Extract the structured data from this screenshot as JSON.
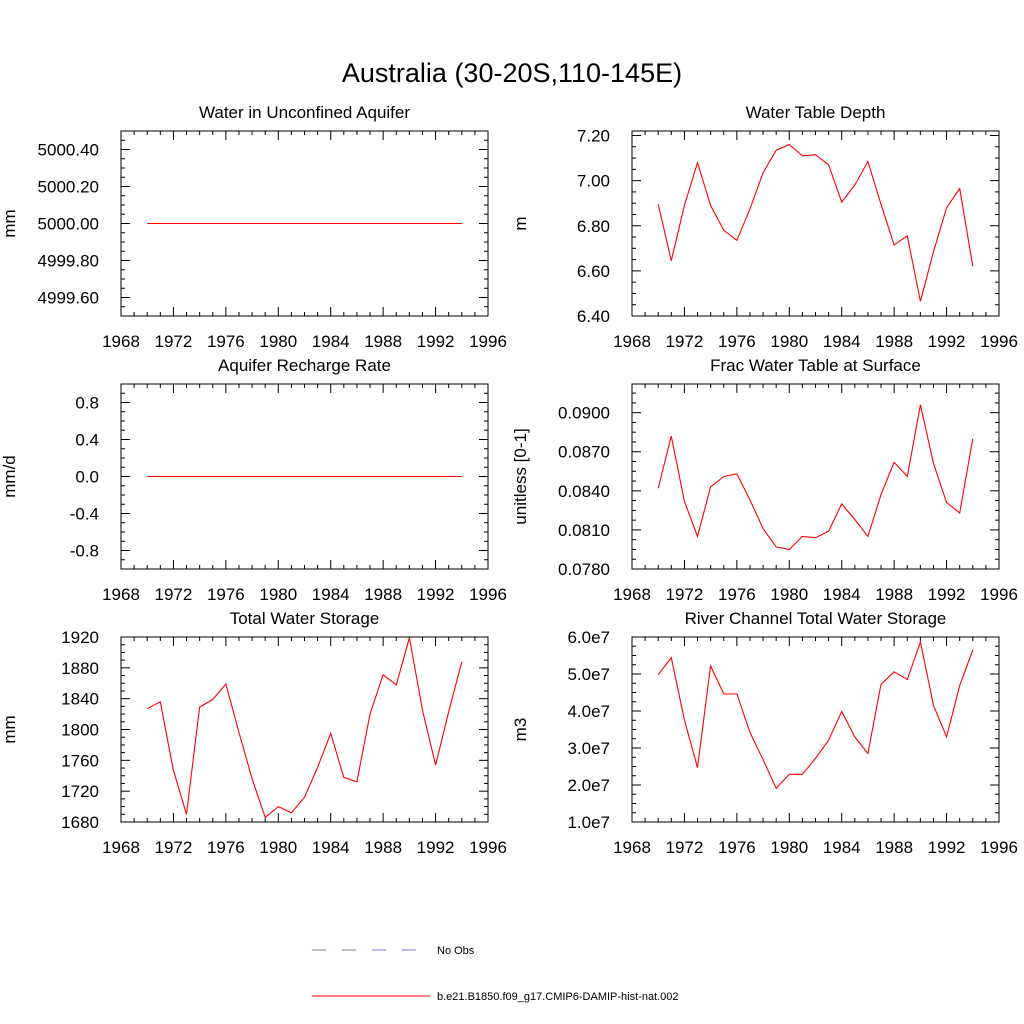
{
  "title": "Australia (30-20S,110-145E)",
  "colors": {
    "model_line": "#ff0000",
    "obs_line": "#7b7bd0",
    "axis": "#000000"
  },
  "legend": [
    {
      "label": "No Obs",
      "style": "dashed",
      "color": "#7b7bd0"
    },
    {
      "label": "b.e21.B1850.f09_g17.CMIP6-DAMIP-hist-nat.002",
      "style": "solid",
      "color": "#ff0000"
    }
  ],
  "chart_data": [
    {
      "type": "line",
      "title": "Water in Unconfined Aquifer",
      "ylabel": "mm",
      "xlim": [
        1968,
        1996
      ],
      "ylim": [
        4999.5,
        5000.5
      ],
      "xticks": [
        1968,
        1972,
        1976,
        1980,
        1984,
        1988,
        1992,
        1996
      ],
      "yticks": [
        4999.6,
        4999.8,
        5000.0,
        5000.2,
        5000.4
      ],
      "ytick_labels": [
        "4999.60",
        "4999.80",
        "5000.00",
        "5000.20",
        "5000.40"
      ],
      "x": [
        1970,
        1971,
        1972,
        1973,
        1974,
        1975,
        1976,
        1977,
        1978,
        1979,
        1980,
        1981,
        1982,
        1983,
        1984,
        1985,
        1986,
        1987,
        1988,
        1989,
        1990,
        1991,
        1992,
        1993,
        1994
      ],
      "series": [
        {
          "values": [
            5000,
            5000,
            5000,
            5000,
            5000,
            5000,
            5000,
            5000,
            5000,
            5000,
            5000,
            5000,
            5000,
            5000,
            5000,
            5000,
            5000,
            5000,
            5000,
            5000,
            5000,
            5000,
            5000,
            5000,
            5000
          ]
        }
      ]
    },
    {
      "type": "line",
      "title": "Water Table Depth",
      "ylabel": "m",
      "xlim": [
        1968,
        1996
      ],
      "ylim": [
        6.4,
        7.22
      ],
      "xticks": [
        1968,
        1972,
        1976,
        1980,
        1984,
        1988,
        1992,
        1996
      ],
      "yticks": [
        6.4,
        6.6,
        6.8,
        7.0,
        7.2
      ],
      "ytick_labels": [
        "6.40",
        "6.60",
        "6.80",
        "7.00",
        "7.20"
      ],
      "x": [
        1970,
        1971,
        1972,
        1973,
        1974,
        1975,
        1976,
        1977,
        1978,
        1979,
        1980,
        1981,
        1982,
        1983,
        1984,
        1985,
        1986,
        1987,
        1988,
        1989,
        1990,
        1991,
        1992,
        1993,
        1994
      ],
      "series": [
        {
          "values": [
            6.895,
            6.645,
            6.89,
            7.08,
            6.89,
            6.78,
            6.735,
            6.875,
            7.035,
            7.135,
            7.16,
            7.11,
            7.115,
            7.07,
            6.905,
            6.98,
            7.085,
            6.895,
            6.715,
            6.755,
            6.465,
            6.685,
            6.88,
            6.965,
            6.62
          ]
        }
      ]
    },
    {
      "type": "line",
      "title": "Aquifer Recharge Rate",
      "ylabel": "mm/d",
      "xlim": [
        1968,
        1996
      ],
      "ylim": [
        -1.0,
        1.0
      ],
      "xticks": [
        1968,
        1972,
        1976,
        1980,
        1984,
        1988,
        1992,
        1996
      ],
      "yticks": [
        -0.8,
        -0.4,
        0.0,
        0.4,
        0.8
      ],
      "ytick_labels": [
        "-0.8",
        "-0.4",
        "0.0",
        "0.4",
        "0.8"
      ],
      "x": [
        1970,
        1971,
        1972,
        1973,
        1974,
        1975,
        1976,
        1977,
        1978,
        1979,
        1980,
        1981,
        1982,
        1983,
        1984,
        1985,
        1986,
        1987,
        1988,
        1989,
        1990,
        1991,
        1992,
        1993,
        1994
      ],
      "series": [
        {
          "values": [
            0,
            0,
            0,
            0,
            0,
            0,
            0,
            0,
            0,
            0,
            0,
            0,
            0,
            0,
            0,
            0,
            0,
            0,
            0,
            0,
            0,
            0,
            0,
            0,
            0
          ]
        }
      ]
    },
    {
      "type": "line",
      "title": "Frac Water Table at Surface",
      "ylabel": "unitless [0-1]",
      "xlim": [
        1968,
        1996
      ],
      "ylim": [
        0.078,
        0.0922
      ],
      "xticks": [
        1968,
        1972,
        1976,
        1980,
        1984,
        1988,
        1992,
        1996
      ],
      "yticks": [
        0.078,
        0.081,
        0.084,
        0.087,
        0.09
      ],
      "ytick_labels": [
        "0.0780",
        "0.0810",
        "0.0840",
        "0.0870",
        "0.0900"
      ],
      "x": [
        1970,
        1971,
        1972,
        1973,
        1974,
        1975,
        1976,
        1977,
        1978,
        1979,
        1980,
        1981,
        1982,
        1983,
        1984,
        1985,
        1986,
        1987,
        1988,
        1989,
        1990,
        1991,
        1992,
        1993,
        1994
      ],
      "series": [
        {
          "values": [
            0.0842,
            0.0882,
            0.0832,
            0.0805,
            0.0843,
            0.0851,
            0.0853,
            0.0833,
            0.0811,
            0.0797,
            0.0795,
            0.0805,
            0.0804,
            0.0809,
            0.083,
            0.0818,
            0.0805,
            0.0837,
            0.0862,
            0.0851,
            0.0906,
            0.0861,
            0.0831,
            0.0823,
            0.088
          ]
        }
      ]
    },
    {
      "type": "line",
      "title": "Total Water Storage",
      "ylabel": "mm",
      "xlim": [
        1968,
        1996
      ],
      "ylim": [
        1680,
        1920
      ],
      "xticks": [
        1968,
        1972,
        1976,
        1980,
        1984,
        1988,
        1992,
        1996
      ],
      "yticks": [
        1680,
        1720,
        1760,
        1800,
        1840,
        1880,
        1920
      ],
      "ytick_labels": [
        "1680",
        "1720",
        "1760",
        "1800",
        "1840",
        "1880",
        "1920"
      ],
      "x": [
        1970,
        1971,
        1972,
        1973,
        1974,
        1975,
        1976,
        1977,
        1978,
        1979,
        1980,
        1981,
        1982,
        1983,
        1984,
        1985,
        1986,
        1987,
        1988,
        1989,
        1990,
        1991,
        1992,
        1993,
        1994
      ],
      "series": [
        {
          "values": [
            1827,
            1836,
            1747,
            1690,
            1829,
            1839,
            1859,
            1796,
            1736,
            1686,
            1700,
            1692,
            1712,
            1751,
            1795,
            1738,
            1732,
            1820,
            1871,
            1858,
            1919,
            1825,
            1754,
            1823,
            1888
          ]
        }
      ]
    },
    {
      "type": "line",
      "title": "River Channel Total Water Storage",
      "ylabel": "m3",
      "xlim": [
        1968,
        1996
      ],
      "ylim": [
        10000000,
        60000000
      ],
      "xticks": [
        1968,
        1972,
        1976,
        1980,
        1984,
        1988,
        1992,
        1996
      ],
      "yticks": [
        10000000,
        20000000,
        30000000,
        40000000,
        50000000,
        60000000
      ],
      "ytick_labels": [
        "1.0e7",
        "2.0e7",
        "3.0e7",
        "4.0e7",
        "5.0e7",
        "6.0e7"
      ],
      "x": [
        1970,
        1971,
        1972,
        1973,
        1974,
        1975,
        1976,
        1977,
        1978,
        1979,
        1980,
        1981,
        1982,
        1983,
        1984,
        1985,
        1986,
        1987,
        1988,
        1989,
        1990,
        1991,
        1992,
        1993,
        1994
      ],
      "series": [
        {
          "values": [
            49800000,
            54400000,
            37600000,
            24700000,
            52200000,
            44600000,
            44600000,
            34200000,
            26800000,
            19100000,
            22900000,
            22900000,
            27200000,
            32100000,
            39900000,
            33000000,
            28500000,
            47200000,
            50600000,
            48500000,
            58700000,
            41500000,
            33000000,
            46900000,
            56500000
          ]
        }
      ]
    }
  ]
}
